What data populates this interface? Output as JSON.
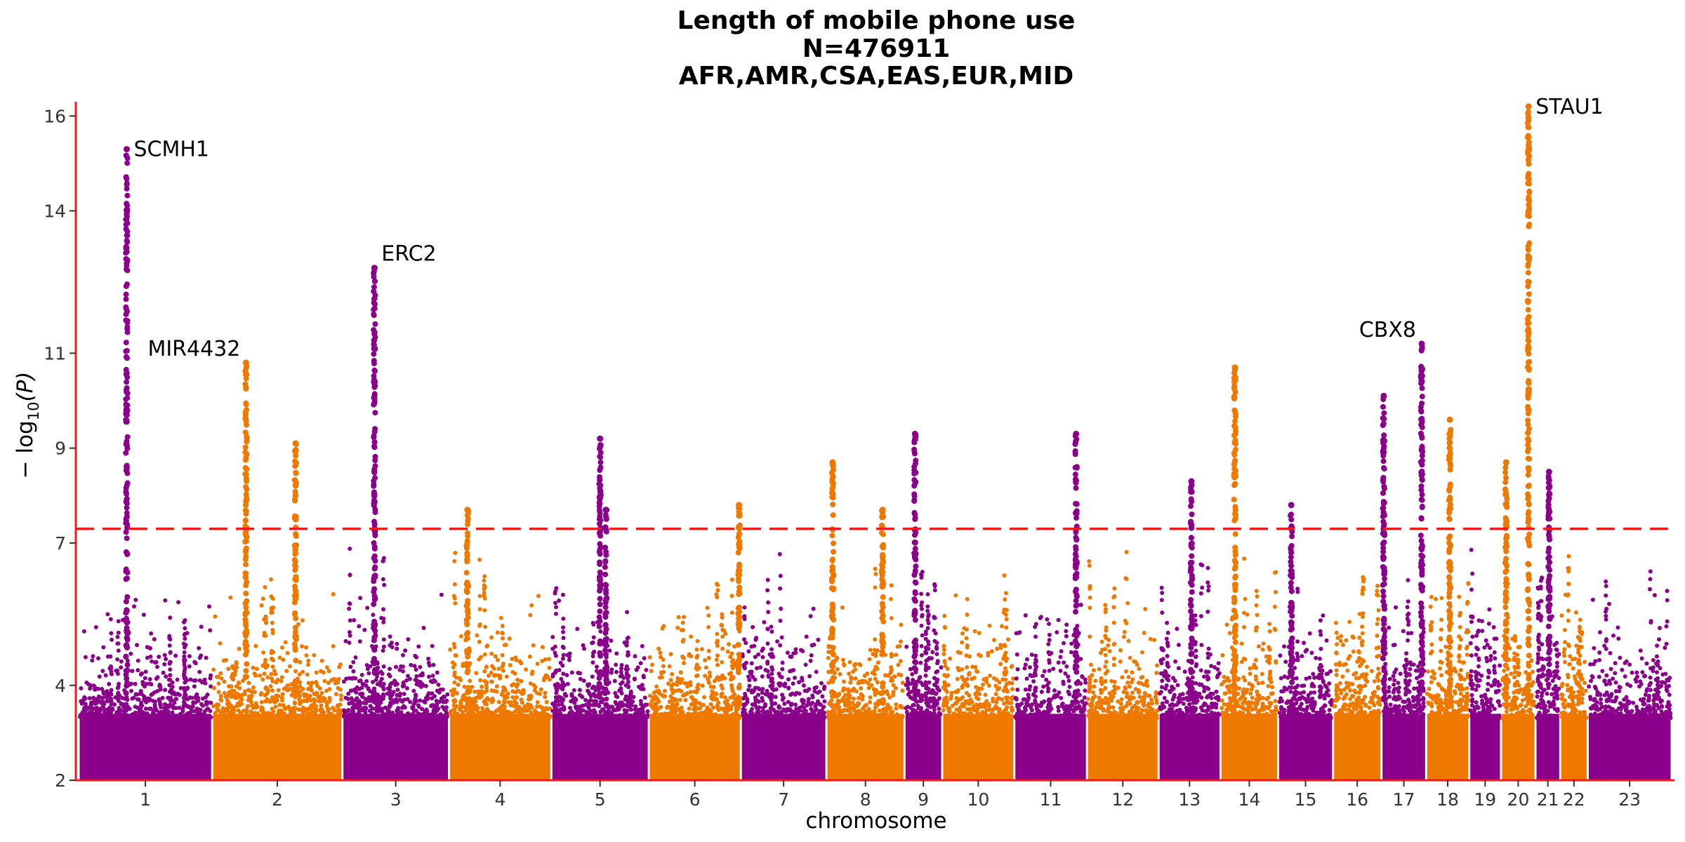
{
  "chart_data": {
    "type": "scatter",
    "subtype": "manhattan",
    "title_lines": [
      "Length of mobile phone use",
      "N=476911",
      "AFR,AMR,CSA,EAS,EUR,MID"
    ],
    "xlabel": "chromosome",
    "ylabel_main": "− log",
    "ylabel_sub": "10",
    "ylabel_p": "(P)",
    "ylim": [
      2,
      16.3
    ],
    "yticks": [
      2,
      4,
      7,
      9,
      11,
      14,
      16
    ],
    "threshold": 7.3,
    "threshold_color": "#ee1c1c",
    "axis_color": "#ee1c1c",
    "colors": {
      "odd": "#8a008a",
      "even": "#ef7800"
    },
    "chromosomes": [
      {
        "label": "1",
        "length": 248
      },
      {
        "label": "2",
        "length": 242
      },
      {
        "label": "3",
        "length": 198
      },
      {
        "label": "4",
        "length": 190
      },
      {
        "label": "5",
        "length": 181
      },
      {
        "label": "6",
        "length": 171
      },
      {
        "label": "7",
        "length": 159
      },
      {
        "label": "8",
        "length": 145
      },
      {
        "label": "9",
        "length": 70
      },
      {
        "label": "10",
        "length": 134
      },
      {
        "label": "11",
        "length": 135
      },
      {
        "label": "12",
        "length": 133
      },
      {
        "label": "13",
        "length": 115
      },
      {
        "label": "14",
        "length": 107
      },
      {
        "label": "15",
        "length": 102
      },
      {
        "label": "16",
        "length": 90
      },
      {
        "label": "17",
        "length": 83
      },
      {
        "label": "18",
        "length": 80
      },
      {
        "label": "19",
        "length": 59
      },
      {
        "label": "20",
        "length": 64
      },
      {
        "label": "21",
        "length": 46
      },
      {
        "label": "22",
        "length": 51
      },
      {
        "label": "23",
        "length": 156
      }
    ],
    "peaks": [
      {
        "chr": "1",
        "pos": 0.36,
        "top": 15.3,
        "gene": "SCMH1"
      },
      {
        "chr": "2",
        "pos": 0.26,
        "top": 10.8,
        "gene": "MIR4432"
      },
      {
        "chr": "2",
        "pos": 0.64,
        "top": 9.1
      },
      {
        "chr": "3",
        "pos": 0.3,
        "top": 12.8,
        "gene": "ERC2"
      },
      {
        "chr": "4",
        "pos": 0.18,
        "top": 7.7
      },
      {
        "chr": "5",
        "pos": 0.5,
        "top": 9.2
      },
      {
        "chr": "5",
        "pos": 0.56,
        "top": 7.7
      },
      {
        "chr": "6",
        "pos": 0.98,
        "top": 7.8
      },
      {
        "chr": "8",
        "pos": 0.08,
        "top": 8.7
      },
      {
        "chr": "8",
        "pos": 0.72,
        "top": 7.7
      },
      {
        "chr": "9",
        "pos": 0.28,
        "top": 9.3
      },
      {
        "chr": "11",
        "pos": 0.85,
        "top": 9.3
      },
      {
        "chr": "13",
        "pos": 0.53,
        "top": 8.3
      },
      {
        "chr": "14",
        "pos": 0.25,
        "top": 10.7
      },
      {
        "chr": "15",
        "pos": 0.24,
        "top": 7.8
      },
      {
        "chr": "17",
        "pos": 0.05,
        "top": 10.1
      },
      {
        "chr": "17",
        "pos": 0.9,
        "top": 11.2,
        "gene": "CBX8"
      },
      {
        "chr": "18",
        "pos": 0.55,
        "top": 9.6
      },
      {
        "chr": "20",
        "pos": 0.15,
        "top": 8.7
      },
      {
        "chr": "20",
        "pos": 0.8,
        "top": 16.2,
        "gene": "STAU1"
      },
      {
        "chr": "21",
        "pos": 0.55,
        "top": 8.5
      }
    ]
  }
}
